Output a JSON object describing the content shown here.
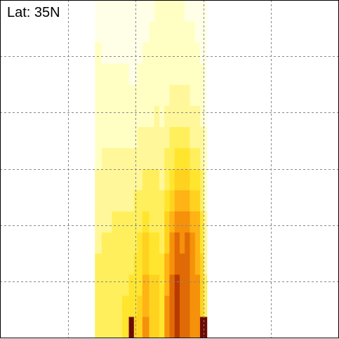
{
  "chart_data": {
    "type": "heatmap",
    "title": "Lat: 35N",
    "xlabel": "",
    "ylabel": "",
    "grid": true,
    "x_grid_divisions": 5,
    "y_grid_divisions": 6,
    "column_range": [
      0.28,
      0.61
    ],
    "colors": [
      "#ffffe8",
      "#ffffc4",
      "#fff799",
      "#ffef5c",
      "#ffe52e",
      "#ffd21f",
      "#ffb314",
      "#f5910a",
      "#e06a05",
      "#b83a00",
      "#6e0a00"
    ],
    "columns": [
      {
        "x": [
          0.28,
          0.3
        ],
        "levels": [
          3,
          3,
          3,
          3,
          2,
          2,
          2,
          2,
          1,
          1,
          1,
          1,
          1,
          1,
          0,
          0
        ]
      },
      {
        "x": [
          0.3,
          0.33
        ],
        "levels": [
          3,
          3,
          3,
          3,
          3,
          2,
          2,
          2,
          2,
          1,
          1,
          1,
          1,
          0,
          0,
          0
        ]
      },
      {
        "x": [
          0.33,
          0.36
        ],
        "levels": [
          3,
          3,
          3,
          3,
          3,
          3,
          2,
          2,
          2,
          1,
          1,
          1,
          1,
          0,
          0,
          0
        ]
      },
      {
        "x": [
          0.36,
          0.38
        ],
        "levels": [
          4,
          4,
          3,
          3,
          3,
          3,
          2,
          2,
          2,
          1,
          1,
          1,
          1,
          0,
          0,
          0
        ]
      },
      {
        "x": [
          0.38,
          0.395
        ],
        "levels": [
          10,
          4,
          4,
          3,
          3,
          3,
          2,
          2,
          2,
          1,
          1,
          1,
          0,
          0,
          0,
          0
        ]
      },
      {
        "x": [
          0.395,
          0.405
        ],
        "levels": [
          5,
          4,
          4,
          4,
          3,
          3,
          3,
          2,
          2,
          1,
          1,
          1,
          0,
          0,
          0,
          0
        ]
      },
      {
        "x": [
          0.405,
          0.42
        ],
        "levels": [
          5,
          5,
          4,
          4,
          4,
          3,
          3,
          2,
          2,
          2,
          1,
          1,
          1,
          0,
          0,
          0
        ]
      },
      {
        "x": [
          0.42,
          0.44
        ],
        "levels": [
          7,
          6,
          6,
          5,
          5,
          4,
          3,
          3,
          2,
          2,
          1,
          1,
          1,
          1,
          0,
          0
        ]
      },
      {
        "x": [
          0.44,
          0.455
        ],
        "levels": [
          5,
          5,
          5,
          4,
          4,
          3,
          3,
          3,
          2,
          2,
          1,
          1,
          1,
          1,
          1,
          0
        ]
      },
      {
        "x": [
          0.455,
          0.47
        ],
        "levels": [
          5,
          5,
          5,
          4,
          4,
          3,
          3,
          3,
          2,
          2,
          2,
          1,
          1,
          1,
          1,
          1
        ]
      },
      {
        "x": [
          0.47,
          0.485
        ],
        "levels": [
          4,
          4,
          4,
          4,
          3,
          3,
          3,
          2,
          2,
          2,
          1,
          1,
          1,
          1,
          1,
          1
        ]
      },
      {
        "x": [
          0.485,
          0.5
        ],
        "levels": [
          7,
          7,
          6,
          6,
          5,
          5,
          4,
          3,
          3,
          2,
          2,
          1,
          1,
          1,
          1,
          1
        ]
      },
      {
        "x": [
          0.5,
          0.515
        ],
        "levels": [
          8,
          8,
          8,
          7,
          7,
          6,
          5,
          4,
          3,
          3,
          2,
          2,
          1,
          1,
          1,
          1
        ]
      },
      {
        "x": [
          0.515,
          0.53
        ],
        "levels": [
          9,
          9,
          9,
          8,
          8,
          7,
          6,
          5,
          4,
          3,
          2,
          2,
          1,
          1,
          1,
          1
        ]
      },
      {
        "x": [
          0.53,
          0.545
        ],
        "levels": [
          8,
          8,
          8,
          8,
          7,
          7,
          6,
          5,
          4,
          3,
          2,
          2,
          1,
          1,
          1,
          1
        ]
      },
      {
        "x": [
          0.545,
          0.56
        ],
        "levels": [
          8,
          8,
          8,
          8,
          8,
          7,
          6,
          5,
          4,
          3,
          2,
          2,
          1,
          1,
          1,
          0
        ]
      },
      {
        "x": [
          0.56,
          0.575
        ],
        "levels": [
          7,
          7,
          7,
          7,
          7,
          6,
          5,
          4,
          3,
          2,
          2,
          1,
          1,
          1,
          1,
          0
        ]
      },
      {
        "x": [
          0.575,
          0.59
        ],
        "levels": [
          7,
          7,
          7,
          6,
          6,
          6,
          5,
          4,
          3,
          2,
          2,
          1,
          1,
          1,
          0,
          0
        ]
      },
      {
        "x": [
          0.59,
          0.6
        ],
        "levels": [
          10,
          5,
          5,
          5,
          4,
          4,
          3,
          3,
          2,
          2,
          1,
          1,
          1,
          0,
          0,
          0
        ]
      },
      {
        "x": [
          0.6,
          0.61
        ],
        "levels": [
          10,
          3,
          3,
          2,
          2,
          2,
          1,
          1,
          1,
          1,
          0,
          0,
          0,
          0,
          0,
          0
        ]
      }
    ]
  }
}
